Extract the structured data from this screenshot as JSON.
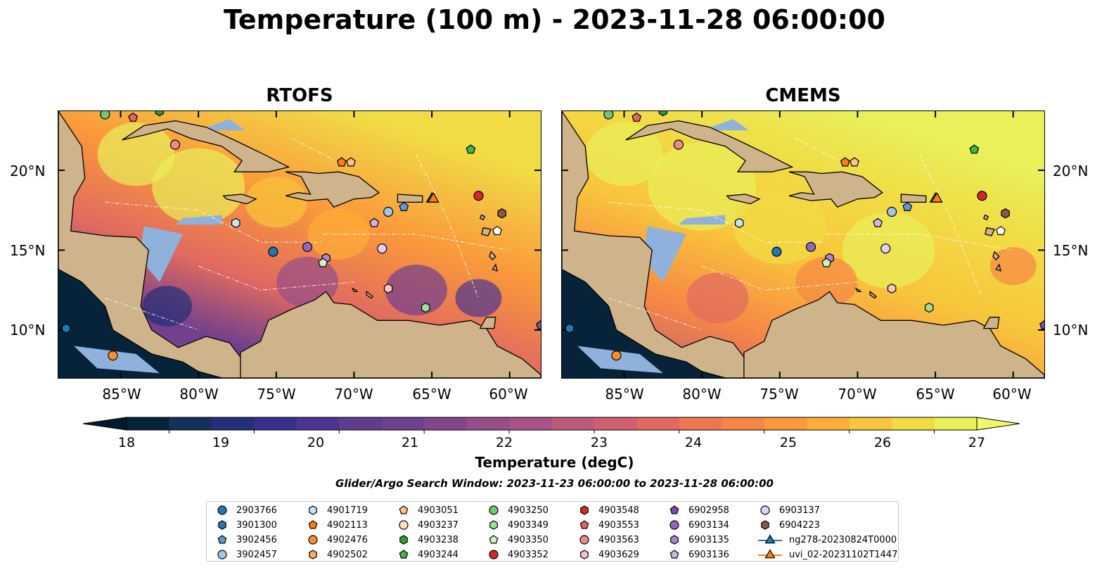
{
  "title": "Temperature (100 m) - 2023-11-28 06:00:00",
  "panels": [
    {
      "title": "RTOFS",
      "id": "rtofs"
    },
    {
      "title": "CMEMS",
      "id": "cmems"
    }
  ],
  "lat_ticks": [
    "20°N",
    "15°N",
    "10°N"
  ],
  "lon_ticks": [
    "85°W",
    "80°W",
    "75°W",
    "70°W",
    "65°W",
    "60°W"
  ],
  "colorbar": {
    "label": "Temperature (degC)",
    "ticks": [
      "18",
      "19",
      "20",
      "21",
      "22",
      "23",
      "24",
      "25",
      "26",
      "27"
    ],
    "min": 17.5,
    "max": 27.5,
    "colormap": "thermal",
    "colors": [
      "#05233a",
      "#16305a",
      "#252e78",
      "#37308d",
      "#4b3590",
      "#5e3d8f",
      "#703f8d",
      "#82468c",
      "#964d89",
      "#a85285",
      "#bd5a7c",
      "#d0606f",
      "#e06a60",
      "#ee7652",
      "#f78646",
      "#fa983b",
      "#fdad38",
      "#f8c53b",
      "#f1dc45",
      "#e8f05a"
    ]
  },
  "search_window": "Glider/Argo Search Window: 2023-11-23 06:00:00 to 2023-11-28 06:00:00",
  "legend": [
    {
      "label": "2903766",
      "marker": "circle",
      "color": "#1f77b4"
    },
    {
      "label": "3901300",
      "marker": "hexagon",
      "color": "#1f77b4"
    },
    {
      "label": "3902456",
      "marker": "pentagon",
      "color": "#5a9bd4"
    },
    {
      "label": "3902457",
      "marker": "circle",
      "color": "#9ec7ea"
    },
    {
      "label": "4901719",
      "marker": "hexagon",
      "color": "#c6e3f7"
    },
    {
      "label": "4902113",
      "marker": "pentagon",
      "color": "#ff7f0e"
    },
    {
      "label": "4902476",
      "marker": "circle",
      "color": "#ff8c2a"
    },
    {
      "label": "4902502",
      "marker": "hexagon",
      "color": "#ffa95a"
    },
    {
      "label": "4903051",
      "marker": "pentagon",
      "color": "#ffc38f"
    },
    {
      "label": "4903237",
      "marker": "circle",
      "color": "#ffe0bd"
    },
    {
      "label": "4903238",
      "marker": "hexagon",
      "color": "#2ca02c"
    },
    {
      "label": "4903244",
      "marker": "pentagon",
      "color": "#42b542"
    },
    {
      "label": "4903250",
      "marker": "circle",
      "color": "#6ec96e"
    },
    {
      "label": "4903349",
      "marker": "hexagon",
      "color": "#9fdf9a"
    },
    {
      "label": "4903350",
      "marker": "pentagon",
      "color": "#cff2c6"
    },
    {
      "label": "4903352",
      "marker": "circle",
      "color": "#d62728"
    },
    {
      "label": "4903548",
      "marker": "hexagon",
      "color": "#d62728"
    },
    {
      "label": "4903553",
      "marker": "pentagon",
      "color": "#e06666"
    },
    {
      "label": "4903563",
      "marker": "circle",
      "color": "#f08a8a"
    },
    {
      "label": "4903629",
      "marker": "hexagon",
      "color": "#fbc3c3"
    },
    {
      "label": "6902958",
      "marker": "pentagon",
      "color": "#7b4fb0"
    },
    {
      "label": "6903134",
      "marker": "circle",
      "color": "#9467bd"
    },
    {
      "label": "6903135",
      "marker": "hexagon",
      "color": "#ad86d1"
    },
    {
      "label": "6903136",
      "marker": "pentagon",
      "color": "#d0b5ea"
    },
    {
      "label": "6903137",
      "marker": "circle",
      "color": "#e3cdf7"
    },
    {
      "label": "6904223",
      "marker": "hexagon",
      "color": "#8c564b"
    },
    {
      "label": "ng278-20230824T0000",
      "marker": "triangle-line",
      "color": "#1f77b4"
    },
    {
      "label": "uvi_02-20231102T1447",
      "marker": "triangle-line",
      "color": "#ff7f0e"
    }
  ],
  "map_markers": [
    {
      "lon": -86.0,
      "lat": 23.5,
      "marker": "circle",
      "color": "#6ec96e"
    },
    {
      "lon": -84.2,
      "lat": 23.3,
      "marker": "pentagon",
      "color": "#e06666"
    },
    {
      "lon": -82.5,
      "lat": 23.7,
      "marker": "hexagon",
      "color": "#2ca02c"
    },
    {
      "lon": -81.5,
      "lat": 21.6,
      "marker": "circle",
      "color": "#f08a8a"
    },
    {
      "lon": -70.8,
      "lat": 20.5,
      "marker": "pentagon",
      "color": "#ff7f0e"
    },
    {
      "lon": -70.2,
      "lat": 20.5,
      "marker": "pentagon",
      "color": "#ffc38f"
    },
    {
      "lon": -62.5,
      "lat": 21.3,
      "marker": "pentagon",
      "color": "#42b542"
    },
    {
      "lon": -62.0,
      "lat": 18.4,
      "marker": "circle",
      "color": "#d62728"
    },
    {
      "lon": -60.5,
      "lat": 17.3,
      "marker": "hexagon",
      "color": "#8c564b"
    },
    {
      "lon": -65.0,
      "lat": 18.2,
      "marker": "triangle",
      "color": "#1f77b4"
    },
    {
      "lon": -64.9,
      "lat": 18.2,
      "marker": "triangle",
      "color": "#ff7f0e"
    },
    {
      "lon": -66.8,
      "lat": 17.7,
      "marker": "pentagon",
      "color": "#5a9bd4"
    },
    {
      "lon": -67.8,
      "lat": 17.4,
      "marker": "circle",
      "color": "#9ec7ea"
    },
    {
      "lon": -68.7,
      "lat": 16.7,
      "marker": "pentagon",
      "color": "#d0b5ea"
    },
    {
      "lon": -77.6,
      "lat": 16.7,
      "marker": "hexagon",
      "color": "#c6e3f7"
    },
    {
      "lon": -75.2,
      "lat": 14.9,
      "marker": "circle",
      "color": "#1f77b4"
    },
    {
      "lon": -73.0,
      "lat": 15.2,
      "marker": "circle",
      "color": "#9467bd"
    },
    {
      "lon": -71.8,
      "lat": 14.5,
      "marker": "hexagon",
      "color": "#ad86d1"
    },
    {
      "lon": -72.0,
      "lat": 14.2,
      "marker": "pentagon",
      "color": "#cff2c6"
    },
    {
      "lon": -68.2,
      "lat": 15.1,
      "marker": "circle",
      "color": "#e3cdf7"
    },
    {
      "lon": -67.8,
      "lat": 12.6,
      "marker": "hexagon",
      "color": "#fbc3c3"
    },
    {
      "lon": -65.4,
      "lat": 11.4,
      "marker": "hexagon",
      "color": "#9fdf9a"
    },
    {
      "lon": -60.8,
      "lat": 16.2,
      "marker": "pentagon",
      "color": "#ffffff"
    },
    {
      "lon": -58.0,
      "lat": 10.3,
      "marker": "pentagon",
      "color": "#7b4fb0"
    },
    {
      "lon": -88.5,
      "lat": 10.1,
      "marker": "hexagon",
      "color": "#1f77b4"
    },
    {
      "lon": -85.5,
      "lat": 8.4,
      "marker": "circle",
      "color": "#ff8c2a"
    }
  ]
}
